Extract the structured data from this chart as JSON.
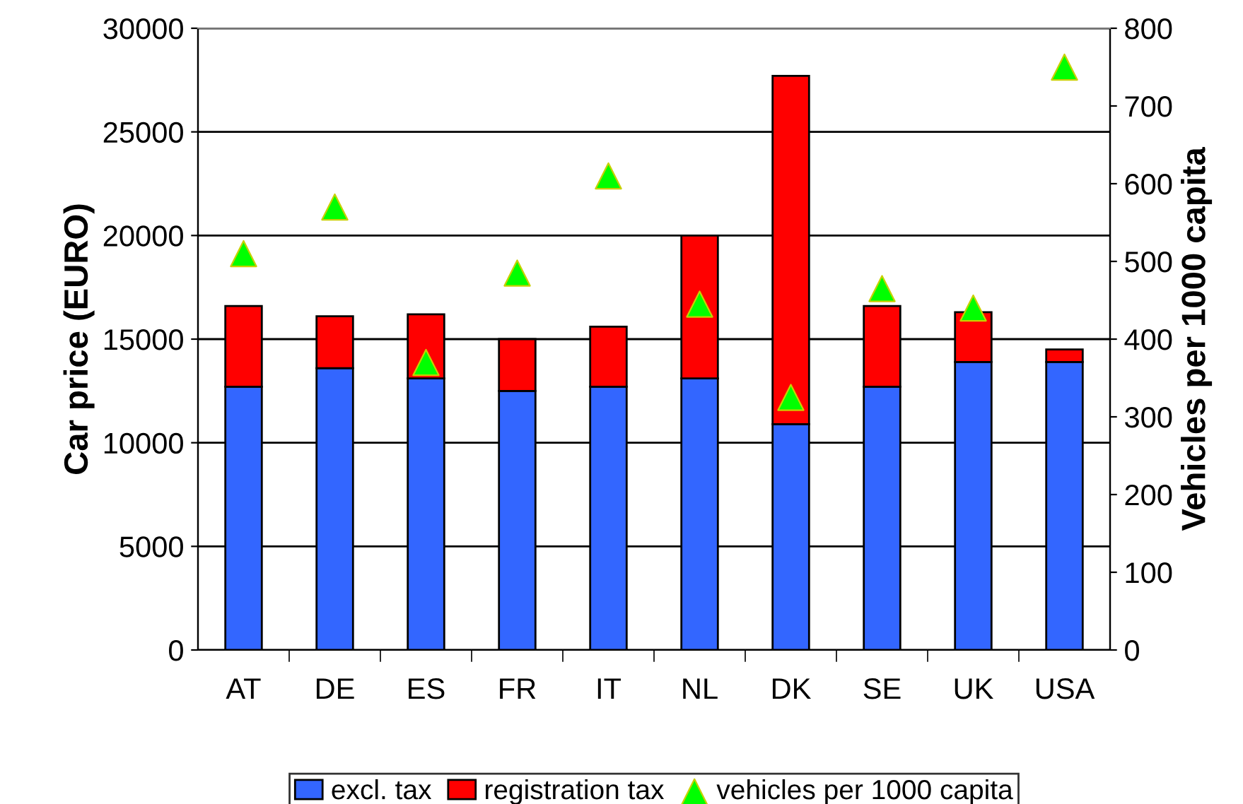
{
  "chart_data": {
    "type": "bar",
    "stacked": true,
    "ylabel": "Car price (EURO)",
    "y2label": "Vehicles per 1000 capita",
    "categories": [
      "AT",
      "DE",
      "ES",
      "FR",
      "IT",
      "NL",
      "DK",
      "SE",
      "UK",
      "USA"
    ],
    "series": [
      {
        "name": "excl. tax",
        "color": "#3366ff",
        "values": [
          12700,
          13600,
          13100,
          12500,
          12700,
          13100,
          10900,
          12700,
          13900,
          13900
        ]
      },
      {
        "name": "registration tax",
        "color": "#ff0000",
        "values": [
          3900,
          2500,
          3100,
          2500,
          2900,
          6900,
          16800,
          3900,
          2400,
          600
        ]
      },
      {
        "name": "vehicles per 1000 capita",
        "type": "scatter",
        "axis": "y2",
        "marker": "triangle",
        "color": "#00ff00",
        "values": [
          510,
          570,
          370,
          485,
          610,
          445,
          325,
          465,
          440,
          750
        ]
      }
    ],
    "ylim": [
      0,
      30000
    ],
    "yticks": [
      0,
      5000,
      10000,
      15000,
      20000,
      25000,
      30000
    ],
    "y2lim": [
      0,
      800
    ],
    "y2ticks": [
      0,
      100,
      200,
      300,
      400,
      500,
      600,
      700,
      800
    ],
    "grid": "y",
    "legend": "bottom"
  }
}
